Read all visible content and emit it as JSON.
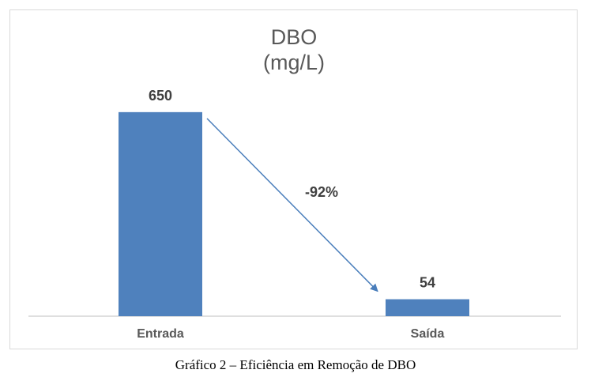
{
  "chart_data": {
    "type": "bar",
    "title_lines": [
      "DBO",
      "(mg/L)"
    ],
    "categories": [
      "Entrada",
      "Saída"
    ],
    "values": [
      650,
      54
    ],
    "data_labels": [
      "650",
      "54"
    ],
    "annotation": "-92%",
    "ylim": [
      0,
      700
    ],
    "xlabel": "",
    "ylabel": "",
    "grid": false,
    "legend": "none",
    "bar_color": "#4f81bd",
    "arrow_color": "#4a7ebb"
  },
  "caption": "Gráfico 2 – Eficiência em Remoção de DBO"
}
